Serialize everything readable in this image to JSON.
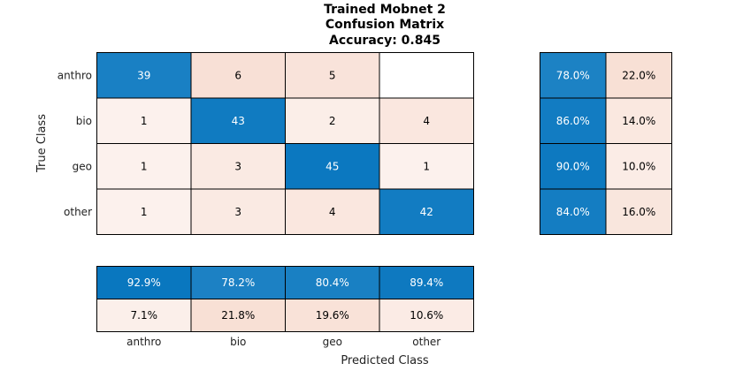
{
  "chart_data": {
    "type": "heatmap",
    "title_lines": [
      "Trained Mobnet 2",
      "Confusion Matrix",
      "Accuracy: 0.845"
    ],
    "xlabel": "Predicted Class",
    "ylabel": "True Class",
    "classes": [
      "anthro",
      "bio",
      "geo",
      "other"
    ],
    "matrix": [
      [
        39,
        6,
        5,
        null
      ],
      [
        1,
        43,
        2,
        4
      ],
      [
        1,
        3,
        45,
        1
      ],
      [
        1,
        3,
        4,
        42
      ]
    ],
    "row_summary": [
      [
        "78.0%",
        "22.0%"
      ],
      [
        "86.0%",
        "14.0%"
      ],
      [
        "90.0%",
        "10.0%"
      ],
      [
        "84.0%",
        "16.0%"
      ]
    ],
    "column_summary": [
      [
        "92.9%",
        "78.2%",
        "80.4%",
        "89.4%"
      ],
      [
        "7.1%",
        "21.8%",
        "19.6%",
        "10.6%"
      ]
    ],
    "colors": {
      "correct": "#0072bd",
      "incorrect": "#d95319",
      "background": "#ffffff",
      "border": "#000000"
    }
  }
}
